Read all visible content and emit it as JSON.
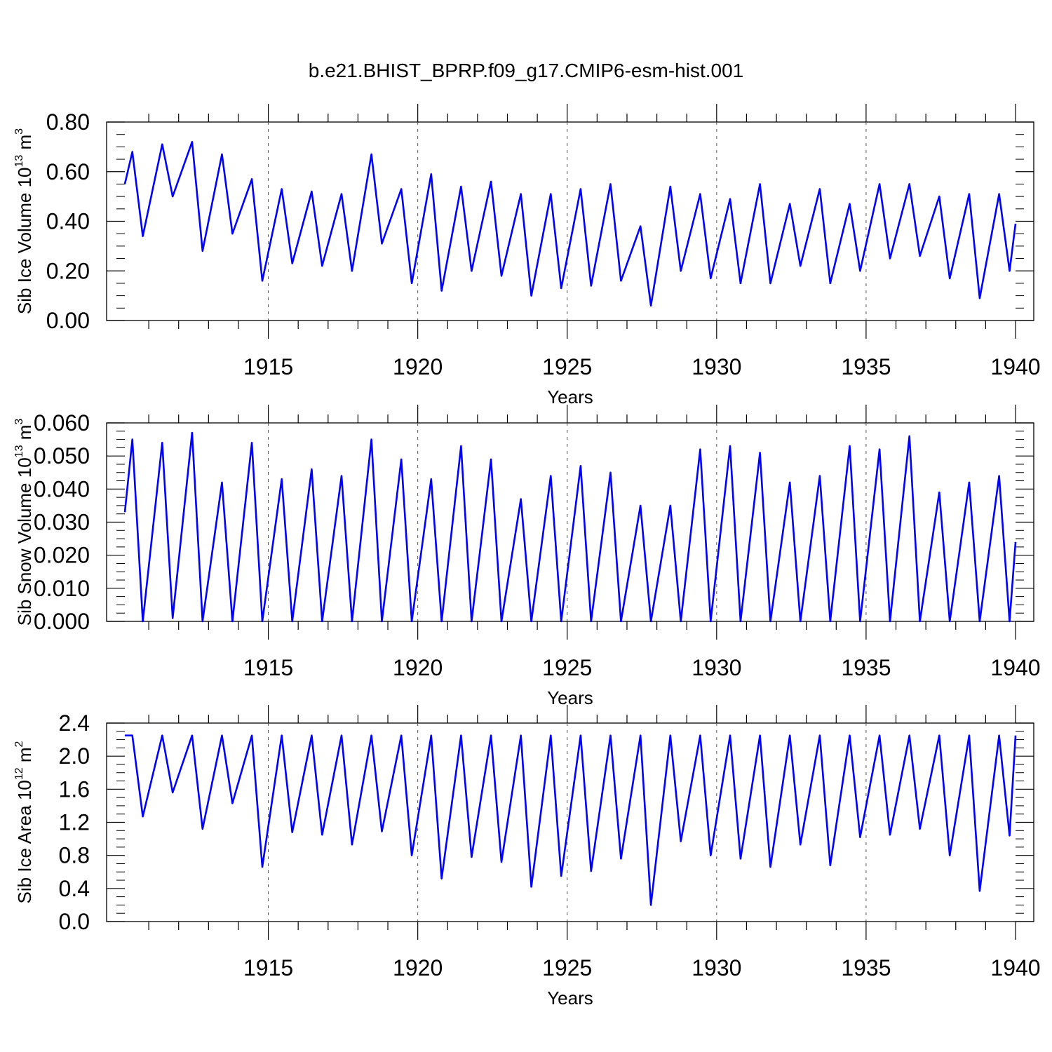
{
  "title": "b.e21.BHIST_BPRP.f09_g17.CMIP6-esm-hist.001",
  "line_color": "#0000ff",
  "chart_data": [
    {
      "type": "line",
      "ylabel": "Sib Ice Volume 10",
      "ylabel_exp": "13",
      "ylabel_unit": " m",
      "ylabel_unit_exp": "3",
      "xlabel": "Years",
      "xlim": [
        1910.2,
        1940.0
      ],
      "ylim": [
        0.0,
        0.8
      ],
      "y_ticks": [
        "0.00",
        "0.20",
        "0.40",
        "0.60",
        "0.80"
      ],
      "y_tick_values": [
        0.0,
        0.2,
        0.4,
        0.6,
        0.8
      ],
      "x_ticks": [
        "1915",
        "1920",
        "1925",
        "1930",
        "1935",
        "1940"
      ],
      "x_tick_values": [
        1915,
        1920,
        1925,
        1930,
        1935,
        1940
      ],
      "grid": "dashed vertical at x ticks",
      "series": [
        {
          "peaks": [
            0.68,
            0.71,
            0.72,
            0.67,
            0.57,
            0.53,
            0.52,
            0.51,
            0.67,
            0.53,
            0.59,
            0.54,
            0.56,
            0.51,
            0.51,
            0.53,
            0.55,
            0.38,
            0.54,
            0.51,
            0.49,
            0.55,
            0.47,
            0.53,
            0.47,
            0.55,
            0.55,
            0.5,
            0.51,
            0.51
          ],
          "troughs": [
            0.34,
            0.5,
            0.28,
            0.35,
            0.16,
            0.23,
            0.22,
            0.2,
            0.31,
            0.15,
            0.12,
            0.2,
            0.18,
            0.1,
            0.13,
            0.14,
            0.16,
            0.06,
            0.2,
            0.17,
            0.15,
            0.15,
            0.22,
            0.15,
            0.2,
            0.25,
            0.26,
            0.17,
            0.09,
            0.2
          ],
          "start": 0.55,
          "end": 0.39
        }
      ]
    },
    {
      "type": "line",
      "ylabel": "Sib Snow Volume 10",
      "ylabel_exp": "13",
      "ylabel_unit": " m",
      "ylabel_unit_exp": "3",
      "xlabel": "Years",
      "xlim": [
        1910.2,
        1940.0
      ],
      "ylim": [
        0.0,
        0.06
      ],
      "y_ticks": [
        "0.000",
        "0.010",
        "0.020",
        "0.030",
        "0.040",
        "0.050",
        "0.060"
      ],
      "y_tick_values": [
        0.0,
        0.01,
        0.02,
        0.03,
        0.04,
        0.05,
        0.06
      ],
      "x_ticks": [
        "1915",
        "1920",
        "1925",
        "1930",
        "1935",
        "1940"
      ],
      "x_tick_values": [
        1915,
        1920,
        1925,
        1930,
        1935,
        1940
      ],
      "grid": "dashed vertical at x ticks",
      "series": [
        {
          "peaks": [
            0.055,
            0.054,
            0.057,
            0.042,
            0.054,
            0.043,
            0.046,
            0.044,
            0.055,
            0.049,
            0.043,
            0.053,
            0.049,
            0.037,
            0.044,
            0.047,
            0.045,
            0.035,
            0.035,
            0.052,
            0.053,
            0.051,
            0.042,
            0.044,
            0.053,
            0.052,
            0.056,
            0.039,
            0.042,
            0.044
          ],
          "troughs": [
            0.0,
            0.001,
            0.0,
            0.0,
            0.0,
            0.0,
            0.0,
            0.0,
            0.0,
            0.0,
            0.0,
            0.0,
            0.0,
            0.0,
            0.0,
            0.0,
            0.0,
            0.0,
            0.0,
            0.0,
            0.0,
            0.0,
            0.0,
            0.0,
            0.0,
            0.0,
            0.0,
            0.0,
            0.0,
            0.0
          ],
          "start": 0.033,
          "end": 0.024
        }
      ]
    },
    {
      "type": "line",
      "ylabel": "Sib Ice Area 10",
      "ylabel_exp": "12",
      "ylabel_unit": " m",
      "ylabel_unit_exp": "2",
      "xlabel": "Years",
      "xlim": [
        1910.2,
        1940.0
      ],
      "ylim": [
        0.0,
        2.4
      ],
      "y_ticks": [
        "0.0",
        "0.4",
        "0.8",
        "1.2",
        "1.6",
        "2.0",
        "2.4"
      ],
      "y_tick_values": [
        0.0,
        0.4,
        0.8,
        1.2,
        1.6,
        2.0,
        2.4
      ],
      "x_ticks": [
        "1915",
        "1920",
        "1925",
        "1930",
        "1935",
        "1940"
      ],
      "x_tick_values": [
        1915,
        1920,
        1925,
        1930,
        1935,
        1940
      ],
      "grid": "dashed vertical at x ticks",
      "series": [
        {
          "peaks": [
            2.25,
            2.25,
            2.25,
            2.25,
            2.25,
            2.25,
            2.25,
            2.25,
            2.25,
            2.25,
            2.25,
            2.25,
            2.25,
            2.25,
            2.25,
            2.25,
            2.25,
            2.25,
            2.25,
            2.25,
            2.25,
            2.25,
            2.25,
            2.25,
            2.25,
            2.25,
            2.25,
            2.25,
            2.25,
            2.25
          ],
          "troughs": [
            1.27,
            1.56,
            1.12,
            1.43,
            0.66,
            1.08,
            1.05,
            0.93,
            1.09,
            0.8,
            0.52,
            0.78,
            0.72,
            0.42,
            0.55,
            0.61,
            0.76,
            0.2,
            0.97,
            0.8,
            0.76,
            0.66,
            0.93,
            0.68,
            1.02,
            1.05,
            1.12,
            0.8,
            0.37,
            1.04
          ],
          "start": 2.25,
          "end": 2.25
        }
      ]
    }
  ]
}
